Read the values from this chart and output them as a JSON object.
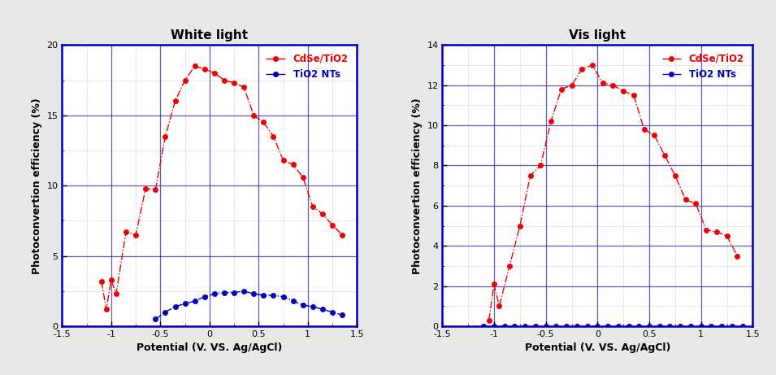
{
  "left_title": "White light",
  "right_title": "Vis light",
  "xlabel": "Potential (V. VS. Ag/AgCl)",
  "ylabel": "Photoconvertion efficiency (%)",
  "white_CdSe_x": [
    -1.1,
    -1.05,
    -1.0,
    -0.95,
    -0.85,
    -0.75,
    -0.65,
    -0.55,
    -0.45,
    -0.35,
    -0.25,
    -0.15,
    -0.05,
    0.05,
    0.15,
    0.25,
    0.35,
    0.45,
    0.55,
    0.65,
    0.75,
    0.85,
    0.95,
    1.05,
    1.15,
    1.25,
    1.35
  ],
  "white_CdSe_y": [
    3.2,
    1.2,
    3.3,
    2.3,
    6.7,
    6.5,
    9.8,
    9.7,
    13.5,
    16.0,
    17.5,
    18.5,
    18.3,
    18.0,
    17.5,
    17.3,
    17.0,
    15.0,
    14.5,
    13.5,
    11.8,
    11.5,
    10.6,
    8.5,
    8.0,
    7.2,
    6.5
  ],
  "white_TiO2_x": [
    -0.55,
    -0.45,
    -0.35,
    -0.25,
    -0.15,
    -0.05,
    0.05,
    0.15,
    0.25,
    0.35,
    0.45,
    0.55,
    0.65,
    0.75,
    0.85,
    0.95,
    1.05,
    1.15,
    1.25,
    1.35
  ],
  "white_TiO2_y": [
    0.5,
    1.0,
    1.4,
    1.6,
    1.8,
    2.1,
    2.3,
    2.4,
    2.4,
    2.5,
    2.3,
    2.2,
    2.2,
    2.1,
    1.8,
    1.5,
    1.4,
    1.2,
    1.0,
    0.8
  ],
  "vis_CdSe_x": [
    -1.05,
    -1.0,
    -0.95,
    -0.85,
    -0.75,
    -0.65,
    -0.55,
    -0.45,
    -0.35,
    -0.25,
    -0.15,
    -0.05,
    0.05,
    0.15,
    0.25,
    0.35,
    0.45,
    0.55,
    0.65,
    0.75,
    0.85,
    0.95,
    1.05,
    1.15,
    1.25,
    1.35
  ],
  "vis_CdSe_y": [
    0.3,
    2.1,
    1.0,
    3.0,
    5.0,
    7.5,
    8.0,
    10.2,
    11.8,
    12.0,
    12.8,
    13.0,
    12.1,
    12.0,
    11.7,
    11.5,
    9.8,
    9.5,
    8.5,
    7.5,
    6.3,
    6.1,
    4.8,
    4.7,
    4.5,
    3.5
  ],
  "vis_TiO2_x": [
    -1.1,
    -1.0,
    -0.9,
    -0.8,
    -0.7,
    -0.6,
    -0.5,
    -0.4,
    -0.3,
    -0.2,
    -0.1,
    0.0,
    0.1,
    0.2,
    0.3,
    0.4,
    0.5,
    0.6,
    0.7,
    0.8,
    0.9,
    1.0,
    1.1,
    1.2,
    1.3,
    1.4
  ],
  "vis_TiO2_y": [
    0.0,
    0.0,
    0.0,
    0.0,
    0.0,
    0.0,
    0.0,
    0.0,
    0.0,
    0.0,
    0.0,
    0.0,
    0.0,
    0.0,
    0.0,
    0.0,
    0.0,
    0.0,
    0.0,
    0.0,
    0.0,
    0.0,
    0.0,
    0.0,
    0.0,
    0.0
  ],
  "red_color": "#EE0000",
  "blue_color": "#0000BB",
  "grid_major_color": "#3333AA",
  "grid_minor_color": "#8888CC",
  "border_color": "#0000BB",
  "fig_bg": "#E8E8E8",
  "white_ylim": [
    0,
    20
  ],
  "white_yticks": [
    0,
    5,
    10,
    15,
    20
  ],
  "vis_ylim": [
    0,
    14
  ],
  "vis_yticks": [
    0,
    2,
    4,
    6,
    8,
    10,
    12,
    14
  ],
  "xlim": [
    -1.5,
    1.5
  ],
  "xticks": [
    -1.5,
    -1.0,
    -0.5,
    0.0,
    0.5,
    1.0,
    1.5
  ],
  "xtick_labels": [
    "-1.5",
    "-1",
    "-0.5",
    "0",
    "0.5",
    "1",
    "1.5"
  ]
}
